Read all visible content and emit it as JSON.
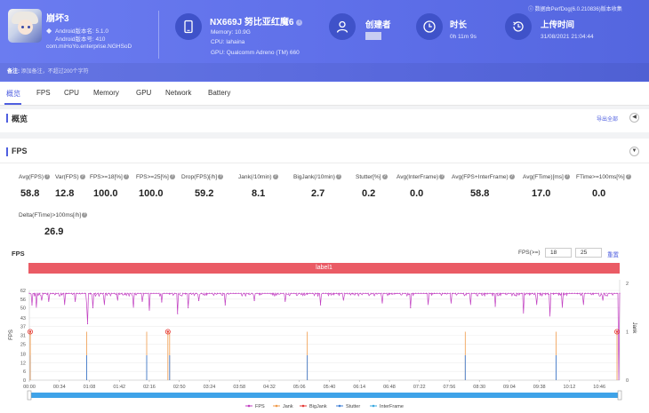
{
  "header": {
    "app_name": "崩坏3",
    "android_version": "Android版本名: 5.1.0",
    "android_code": "Android版本号: 410",
    "package": "com.miHoYo.enterprise.NGHSoD",
    "device_name": "NX669J 努比亚红魔6",
    "memory": "Memory: 10.9G",
    "cpu": "CPU: lahaina",
    "gpu": "GPU: Qualcomm Adreno (TM) 660",
    "creator_label": "创建者",
    "duration_label": "时长",
    "duration_value": "0h 11m 9s",
    "upload_label": "上传时间",
    "upload_value": "31/08/2021 21:04:44",
    "source_note": "数据由PerfDog(6.0.210836)版本收集",
    "note_label": "备注:",
    "note_placeholder": "添加备注，不超过200个字符"
  },
  "tabs": [
    "概览",
    "FPS",
    "CPU",
    "Memory",
    "GPU",
    "Network",
    "Battery"
  ],
  "overview": {
    "title": "概览",
    "export_label": "导出全部"
  },
  "fps_section": {
    "title": "FPS",
    "metrics": [
      {
        "label": "Avg(FPS)",
        "value": "58.8"
      },
      {
        "label": "Var(FPS)",
        "value": "12.8"
      },
      {
        "label": "FPS>=18[%]",
        "value": "100.0"
      },
      {
        "label": "FPS>=25[%]",
        "value": "100.0"
      },
      {
        "label": "Drop(FPS)[/h]",
        "value": "59.2"
      },
      {
        "label": "Jank(/10min)",
        "value": "8.1"
      },
      {
        "label": "BigJank(/10min)",
        "value": "2.7"
      },
      {
        "label": "Stutter[%]",
        "value": "0.2"
      },
      {
        "label": "Avg(InterFrame)",
        "value": "0.0"
      },
      {
        "label": "Avg(FPS+InterFrame)",
        "value": "58.8"
      },
      {
        "label": "Avg(FTime)[ms]",
        "value": "17.0"
      },
      {
        "label": "FTime>=100ms[%]",
        "value": "0.0"
      },
      {
        "label": "Delta(FTime)>100ms[/h]",
        "value": "26.9"
      }
    ]
  },
  "chart_controls": {
    "title": "FPS",
    "fps_threshold_label": "FPS(>=)",
    "threshold_low": "18",
    "threshold_high": "25",
    "reset_label": "重置",
    "label_band": "label1"
  },
  "colors": {
    "header": "#5d6ee8",
    "accent": "#4f5fe0",
    "fps": "#c13fc1",
    "jank": "#f09a4a",
    "bigjank": "#e53935",
    "stutter": "#3f7fd6",
    "interframe": "#39a9e0",
    "label_band": "#ea5b65"
  },
  "chart_data": {
    "type": "line",
    "xlabel": "",
    "ylabel": "FPS",
    "y2label": "Jank",
    "ylim": [
      0,
      62
    ],
    "y2lim": [
      0,
      2
    ],
    "yticks": [
      0,
      6,
      12,
      18,
      25,
      31,
      37,
      43,
      50,
      56,
      62
    ],
    "y2ticks": [
      0,
      1,
      2
    ],
    "x_ticks": [
      "00:00",
      "00:34",
      "01:08",
      "01:42",
      "02:16",
      "02:50",
      "03:24",
      "03:58",
      "04:32",
      "05:06",
      "05:40",
      "06:14",
      "06:48",
      "07:22",
      "07:56",
      "08:30",
      "09:04",
      "09:38",
      "10:12",
      "10:46"
    ],
    "x_range_seconds": [
      0,
      669
    ],
    "legend": [
      "FPS",
      "Jank",
      "BigJank",
      "Stutter",
      "InterFrame"
    ],
    "legend_position": "bottom",
    "fps_baseline": 60,
    "fps_dips": [
      {
        "t": 3,
        "v": 52
      },
      {
        "t": 8,
        "v": 50
      },
      {
        "t": 14,
        "v": 55
      },
      {
        "t": 22,
        "v": 54
      },
      {
        "t": 40,
        "v": 52
      },
      {
        "t": 52,
        "v": 54
      },
      {
        "t": 65,
        "v": 52
      },
      {
        "t": 66,
        "v": 39
      },
      {
        "t": 72,
        "v": 50
      },
      {
        "t": 85,
        "v": 52
      },
      {
        "t": 100,
        "v": 55
      },
      {
        "t": 118,
        "v": 50
      },
      {
        "t": 128,
        "v": 54
      },
      {
        "t": 136,
        "v": 48
      },
      {
        "t": 150,
        "v": 54
      },
      {
        "t": 168,
        "v": 46
      },
      {
        "t": 180,
        "v": 50
      },
      {
        "t": 192,
        "v": 55
      },
      {
        "t": 222,
        "v": 52
      },
      {
        "t": 255,
        "v": 55
      },
      {
        "t": 290,
        "v": 54
      },
      {
        "t": 330,
        "v": 52
      },
      {
        "t": 356,
        "v": 55
      },
      {
        "t": 400,
        "v": 53
      },
      {
        "t": 432,
        "v": 50
      },
      {
        "t": 452,
        "v": 52
      },
      {
        "t": 478,
        "v": 53
      },
      {
        "t": 500,
        "v": 52
      },
      {
        "t": 528,
        "v": 51
      },
      {
        "t": 560,
        "v": 46
      },
      {
        "t": 575,
        "v": 52
      },
      {
        "t": 590,
        "v": 44
      },
      {
        "t": 604,
        "v": 50
      },
      {
        "t": 628,
        "v": 52
      },
      {
        "t": 650,
        "v": 55
      },
      {
        "t": 668,
        "v": 0
      }
    ],
    "jank_times": [
      1,
      65,
      133,
      159,
      315,
      494,
      597
    ],
    "bigjank_times": [
      1,
      157,
      666
    ]
  }
}
